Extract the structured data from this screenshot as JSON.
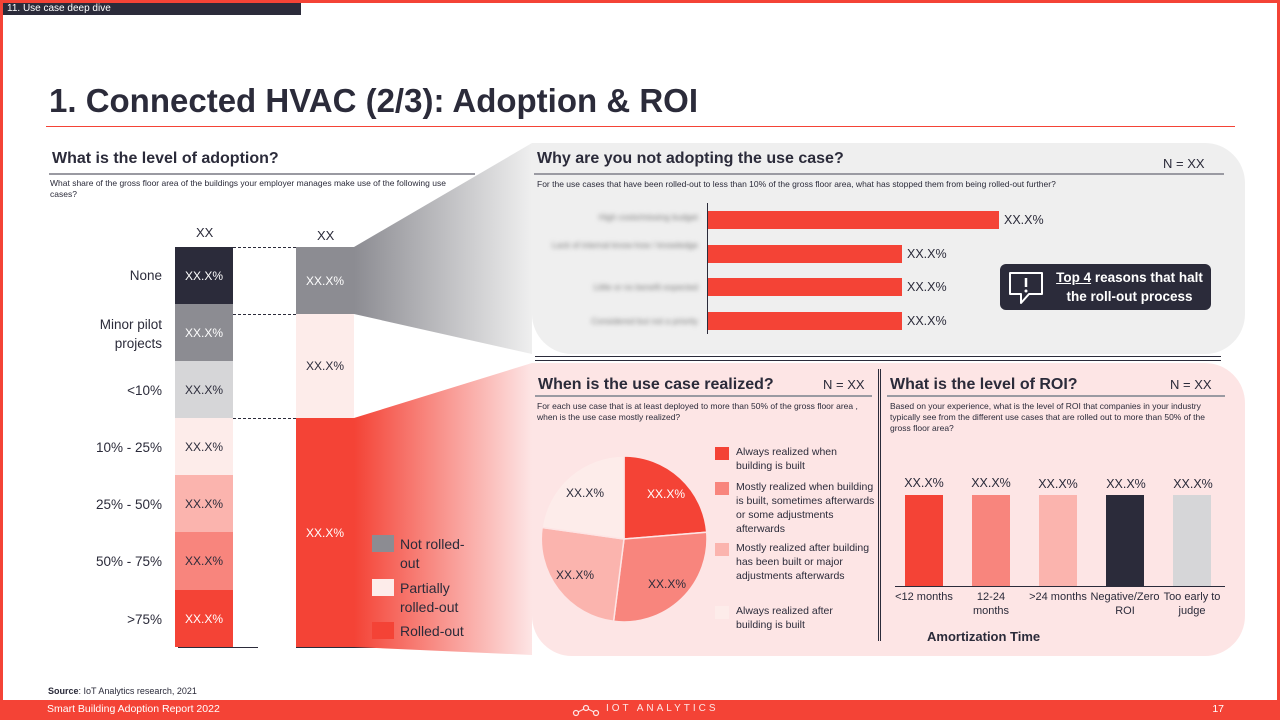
{
  "section_tag": "11. Use case deep dive",
  "title": "1. Connected HVAC (2/3): Adoption & ROI",
  "adoption": {
    "question": "What is the level of adoption?",
    "subtitle": "What share of the gross floor area of the buildings your employer manages make use of the following use cases?",
    "row_labels": [
      "None",
      "Minor pilot projects",
      "<10%",
      "10% - 25%",
      "25% - 50%",
      "50% - 75%",
      ">75%"
    ],
    "col1_head": "XX",
    "col2_head": "XX",
    "col1_values": [
      "XX.X%",
      "XX.X%",
      "XX.X%",
      "XX.X%",
      "XX.X%",
      "XX.X%",
      "XX.X%"
    ],
    "col2_values": [
      "XX.X%",
      "XX.X%",
      "XX.X%"
    ],
    "legend": [
      "Not rolled-out",
      "Partially rolled-out",
      "Rolled-out"
    ]
  },
  "not_adopting": {
    "question": "Why are you not adopting the use case?",
    "n": "N = XX",
    "subtitle": "For the use cases that have been rolled-out to less than 10% of the gross floor area, what has stopped them from being rolled-out further?",
    "labels_blurred": [
      "High costs/missing budget",
      "Lack of internal know-how / knowledge",
      "Little or no benefit expected",
      "Considered but not a priority"
    ],
    "values": [
      "XX.X%",
      "XX.X%",
      "XX.X%",
      "XX.X%"
    ],
    "callout_highlight": "Top 4",
    "callout_rest": " reasons that halt the roll-out process"
  },
  "realized": {
    "question": "When is the use case realized?",
    "n": "N = XX",
    "subtitle": "For each use case that is at least deployed to more than 50% of the gross floor area , when is the use case mostly realized?",
    "slice_values": [
      "XX.X%",
      "XX.X%",
      "XX.X%",
      "XX.X%"
    ],
    "legend": [
      "Always realized when building is built",
      "Mostly realized when building is built, sometimes afterwards or some adjustments afterwards",
      "Mostly realized after building has been built or major adjustments afterwards",
      "Always realized after building is built"
    ]
  },
  "roi": {
    "question": "What is the level of ROI?",
    "n": "N = XX",
    "subtitle": "Based on your experience, what is the level of ROI that companies in your industry typically see from the different use cases that are rolled out to more than 50% of the gross floor area?",
    "values": [
      "XX.X%",
      "XX.X%",
      "XX.X%",
      "XX.X%",
      "XX.X%"
    ],
    "categories": [
      "<12 months",
      "12-24 months",
      ">24 months",
      "Negative/Zero ROI",
      "Too early to judge"
    ],
    "axis_title": "Amortization Time"
  },
  "source_label": "Source",
  "source_text": ": IoT Analytics research, 2021",
  "footer": {
    "report": "Smart Building Adoption Report 2022",
    "logo": "IOT ANALYTICS",
    "page": "17"
  },
  "colors": {
    "accent": "#f44336",
    "dark": "#2b2b3a",
    "grey": "#8c8c92",
    "light_grey": "#d6d6d8",
    "pink_panel": "#fde5e5"
  }
}
